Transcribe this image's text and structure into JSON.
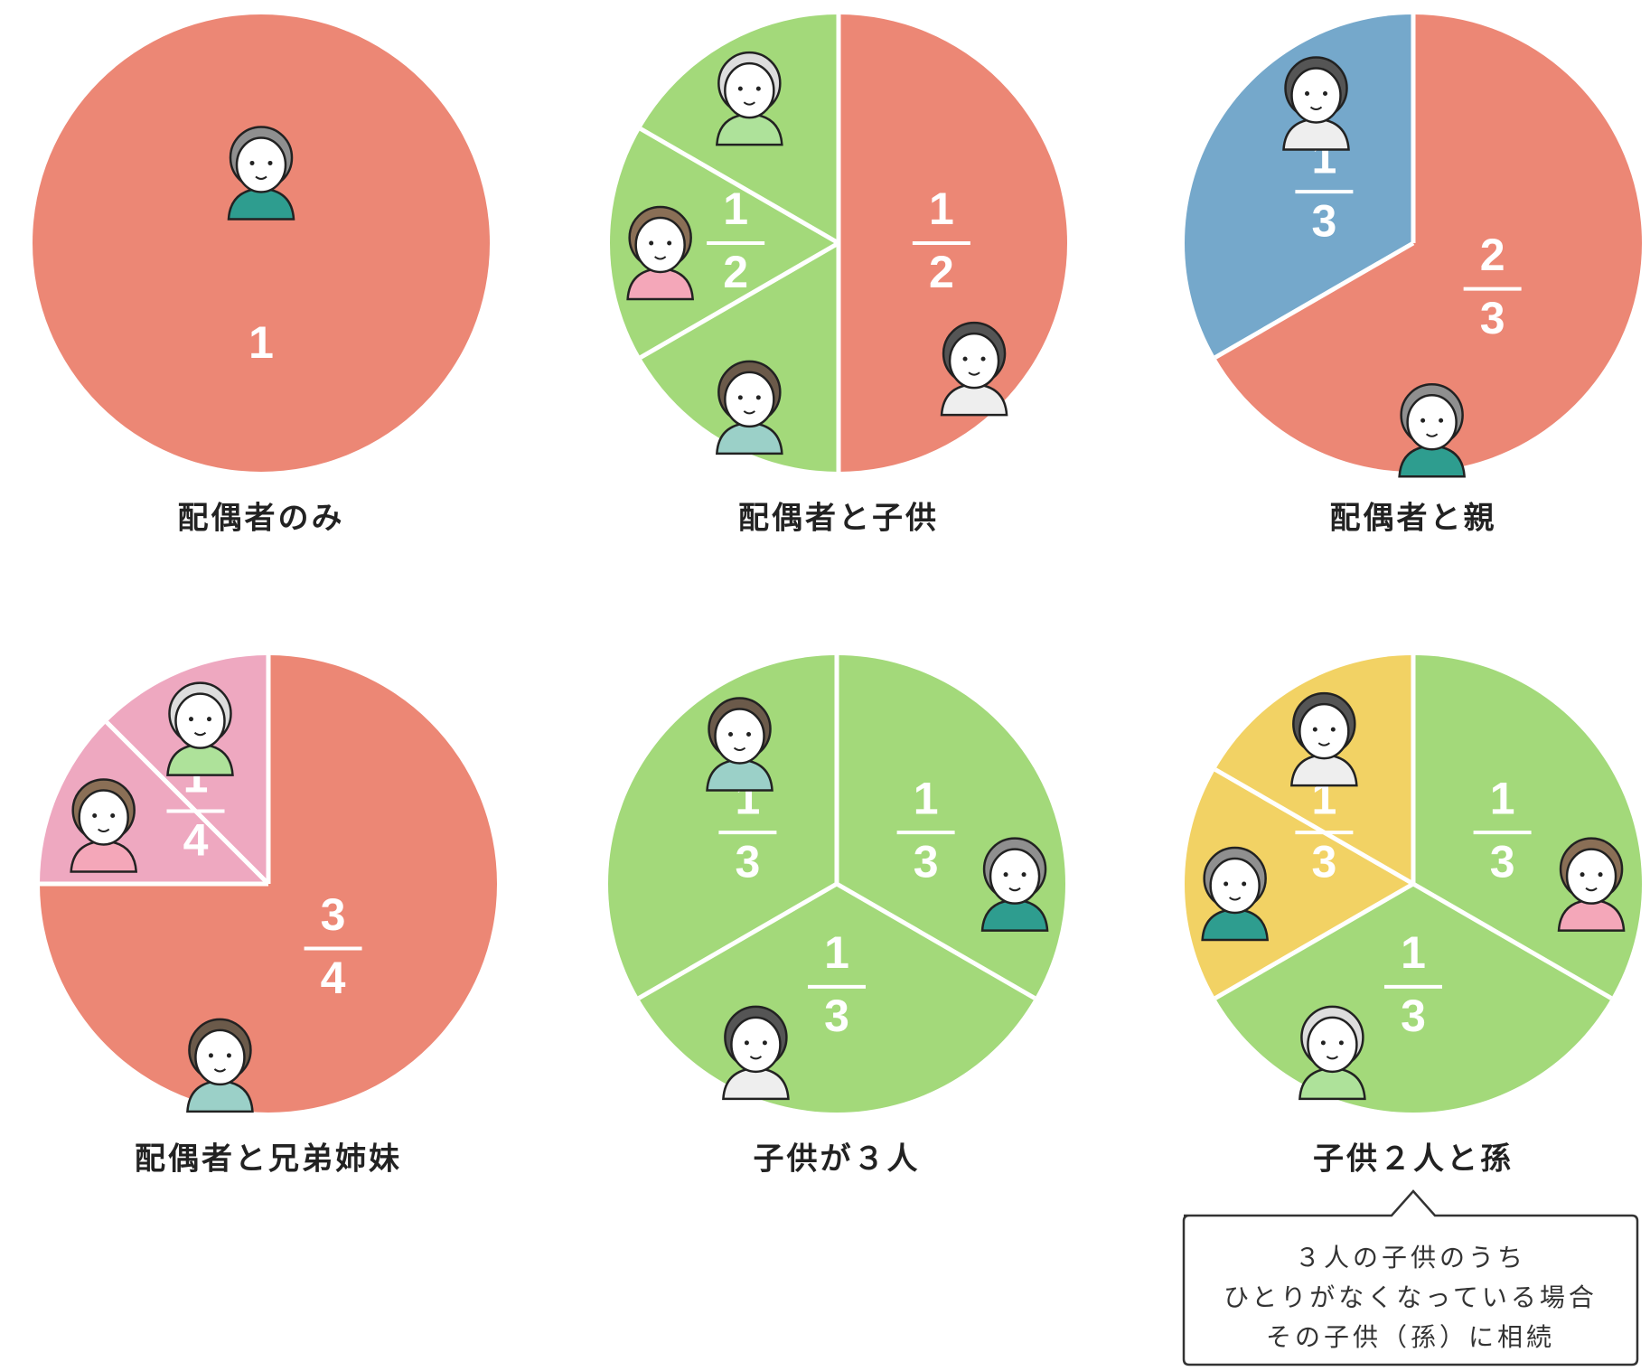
{
  "chart_data": [
    {
      "type": "pie",
      "title": "配偶者のみ",
      "slices": [
        {
          "value": 1,
          "color": "#ec8775"
        }
      ]
    },
    {
      "type": "pie",
      "title": "配偶者と子供",
      "slices": [
        {
          "numerator": 1,
          "denominator": 2,
          "color": "#ec8775"
        },
        {
          "numerator": 1,
          "denominator": 2,
          "color": "#a3d97a",
          "parts": 3
        }
      ]
    },
    {
      "type": "pie",
      "title": "配偶者と親",
      "slices": [
        {
          "numerator": 2,
          "denominator": 3,
          "color": "#ec8775"
        },
        {
          "numerator": 1,
          "denominator": 3,
          "color": "#75a8cb"
        }
      ]
    },
    {
      "type": "pie",
      "title": "配偶者と兄弟姉妹",
      "slices": [
        {
          "numerator": 3,
          "denominator": 4,
          "color": "#ec8775"
        },
        {
          "numerator": 1,
          "denominator": 4,
          "color": "#eea8c0",
          "parts": 2
        }
      ]
    },
    {
      "type": "pie",
      "title": "子供が３人",
      "slices": [
        {
          "numerator": 1,
          "denominator": 3,
          "color": "#a3d97a"
        },
        {
          "numerator": 1,
          "denominator": 3,
          "color": "#a3d97a"
        },
        {
          "numerator": 1,
          "denominator": 3,
          "color": "#a3d97a"
        }
      ]
    },
    {
      "type": "pie",
      "title": "子供２人と孫",
      "slices": [
        {
          "numerator": 1,
          "denominator": 3,
          "color": "#a3d97a"
        },
        {
          "numerator": 1,
          "denominator": 3,
          "color": "#a3d97a"
        },
        {
          "numerator": 1,
          "denominator": 3,
          "color": "#f2d264",
          "parts": 2
        }
      ]
    }
  ],
  "note": [
    "３人の子供のうち",
    "ひとりがなくなっている場合",
    "その子供（孫）に相続"
  ]
}
